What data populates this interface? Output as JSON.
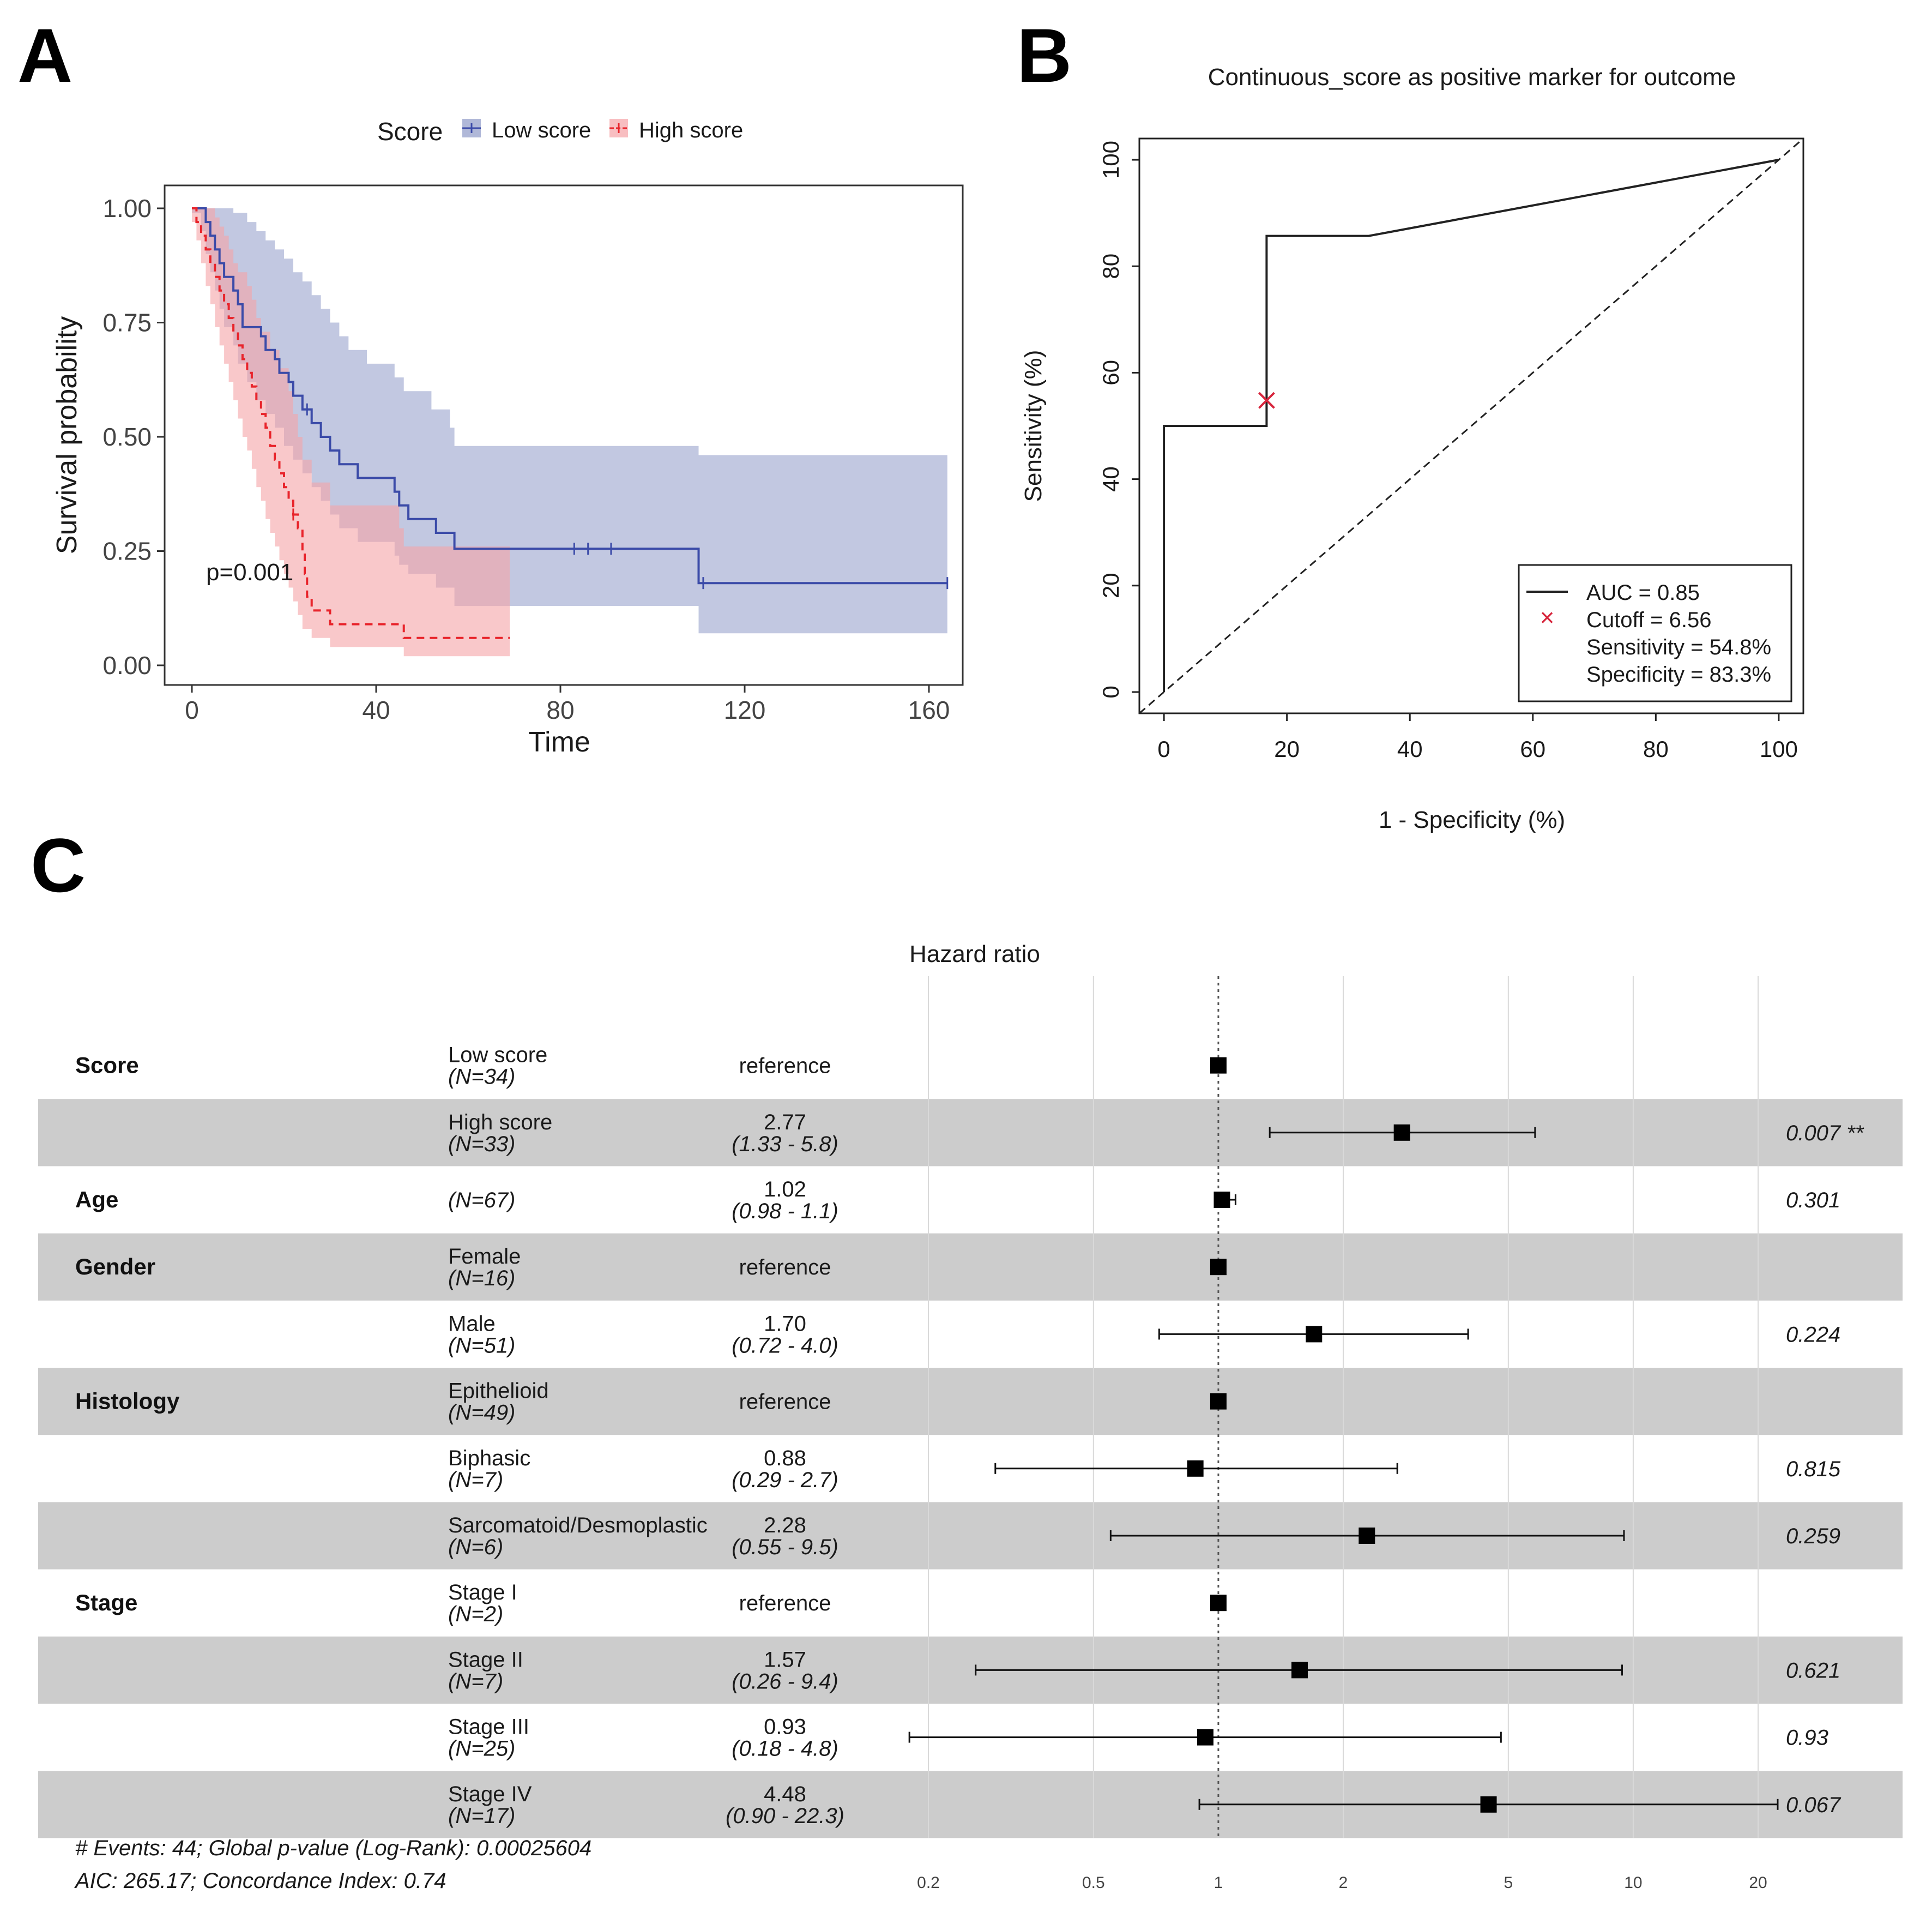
{
  "chart_data": [
    {
      "panel": "A",
      "type": "line",
      "legend": {
        "title": "Score",
        "placement": "top"
      },
      "xlabel": "Time",
      "ylabel": "Survival probability",
      "xlim": [
        0,
        168
      ],
      "ylim": [
        0,
        1
      ],
      "xticks": [
        0,
        40,
        80,
        120,
        160
      ],
      "yticks": [
        0,
        0.25,
        0.5,
        0.75,
        1
      ],
      "xtick_labels": [
        "0",
        "40",
        "80",
        "120",
        "160"
      ],
      "ytick_labels": [
        "0.00",
        "0.25",
        "0.50",
        "0.75",
        "1.00"
      ],
      "annotation": "p=0.001",
      "grid": false,
      "series": [
        {
          "name": "Low score",
          "color": "#3b4ba8",
          "ci_color": "#8f9ac8",
          "line_style": "solid",
          "steps": [
            [
              0,
              1.0
            ],
            [
              3,
              0.97
            ],
            [
              4,
              0.94
            ],
            [
              5,
              0.91
            ],
            [
              6,
              0.88
            ],
            [
              7,
              0.85
            ],
            [
              9,
              0.82
            ],
            [
              10,
              0.79
            ],
            [
              11,
              0.74
            ],
            [
              15,
              0.72
            ],
            [
              16,
              0.69
            ],
            [
              18,
              0.67
            ],
            [
              19,
              0.64
            ],
            [
              21,
              0.62
            ],
            [
              22,
              0.59
            ],
            [
              24,
              0.56
            ],
            [
              26,
              0.53
            ],
            [
              28,
              0.5
            ],
            [
              30,
              0.47
            ],
            [
              32,
              0.44
            ],
            [
              36,
              0.41
            ],
            [
              44,
              0.38
            ],
            [
              45,
              0.35
            ],
            [
              47,
              0.32
            ],
            [
              53,
              0.29
            ],
            [
              57,
              0.255
            ],
            [
              110,
              0.18
            ],
            [
              164,
              0.18
            ]
          ],
          "ci_upper": [
            [
              0,
              1.0
            ],
            [
              7,
              1.0
            ],
            [
              9,
              0.99
            ],
            [
              12,
              0.97
            ],
            [
              14,
              0.95
            ],
            [
              16,
              0.93
            ],
            [
              18,
              0.91
            ],
            [
              20,
              0.89
            ],
            [
              22,
              0.86
            ],
            [
              24,
              0.84
            ],
            [
              26,
              0.81
            ],
            [
              28,
              0.78
            ],
            [
              30,
              0.75
            ],
            [
              32,
              0.72
            ],
            [
              34,
              0.69
            ],
            [
              38,
              0.66
            ],
            [
              44,
              0.63
            ],
            [
              46,
              0.6
            ],
            [
              52,
              0.56
            ],
            [
              56,
              0.52
            ],
            [
              57,
              0.48
            ],
            [
              110,
              0.46
            ],
            [
              164,
              0.46
            ]
          ],
          "ci_lower": [
            [
              0,
              0.99
            ],
            [
              2,
              0.95
            ],
            [
              3,
              0.9
            ],
            [
              4,
              0.86
            ],
            [
              5,
              0.82
            ],
            [
              6,
              0.78
            ],
            [
              7,
              0.74
            ],
            [
              9,
              0.7
            ],
            [
              10,
              0.66
            ],
            [
              12,
              0.62
            ],
            [
              14,
              0.58
            ],
            [
              16,
              0.55
            ],
            [
              18,
              0.52
            ],
            [
              20,
              0.48
            ],
            [
              22,
              0.45
            ],
            [
              24,
              0.42
            ],
            [
              26,
              0.39
            ],
            [
              28,
              0.36
            ],
            [
              30,
              0.33
            ],
            [
              32,
              0.3
            ],
            [
              36,
              0.27
            ],
            [
              44,
              0.24
            ],
            [
              45,
              0.22
            ],
            [
              47,
              0.2
            ],
            [
              53,
              0.17
            ],
            [
              57,
              0.13
            ],
            [
              110,
              0.07
            ],
            [
              164,
              0.07
            ]
          ],
          "censor_times": [
            25,
            83,
            86,
            91,
            111,
            164
          ]
        },
        {
          "name": "High score",
          "color": "#e8242b",
          "ci_color": "#f5a3a6",
          "line_style": "dashed",
          "steps": [
            [
              0,
              1.0
            ],
            [
              1,
              0.97
            ],
            [
              2,
              0.94
            ],
            [
              3,
              0.91
            ],
            [
              4,
              0.88
            ],
            [
              5,
              0.85
            ],
            [
              6,
              0.82
            ],
            [
              7,
              0.79
            ],
            [
              8,
              0.76
            ],
            [
              9,
              0.73
            ],
            [
              10,
              0.7
            ],
            [
              11,
              0.67
            ],
            [
              12,
              0.64
            ],
            [
              13,
              0.61
            ],
            [
              14,
              0.58
            ],
            [
              15,
              0.55
            ],
            [
              16,
              0.52
            ],
            [
              17,
              0.48
            ],
            [
              18,
              0.45
            ],
            [
              19,
              0.42
            ],
            [
              20,
              0.39
            ],
            [
              21,
              0.36
            ],
            [
              22,
              0.33
            ],
            [
              23,
              0.3
            ],
            [
              24,
              0.25
            ],
            [
              24.5,
              0.2
            ],
            [
              25,
              0.15
            ],
            [
              26,
              0.12
            ],
            [
              30,
              0.09
            ],
            [
              46,
              0.06
            ],
            [
              69,
              0.06
            ]
          ],
          "ci_upper": [
            [
              0,
              1.0
            ],
            [
              4,
              1.0
            ],
            [
              5,
              0.98
            ],
            [
              6,
              0.96
            ],
            [
              7,
              0.94
            ],
            [
              8,
              0.91
            ],
            [
              9,
              0.88
            ],
            [
              10,
              0.86
            ],
            [
              12,
              0.83
            ],
            [
              13,
              0.8
            ],
            [
              14,
              0.76
            ],
            [
              15,
              0.73
            ],
            [
              17,
              0.69
            ],
            [
              19,
              0.65
            ],
            [
              21,
              0.6
            ],
            [
              22,
              0.55
            ],
            [
              23,
              0.5
            ],
            [
              24,
              0.45
            ],
            [
              26,
              0.4
            ],
            [
              30,
              0.35
            ],
            [
              45,
              0.3
            ],
            [
              46,
              0.26
            ],
            [
              69,
              0.26
            ]
          ],
          "ci_lower": [
            [
              0,
              0.97
            ],
            [
              1,
              0.93
            ],
            [
              2,
              0.88
            ],
            [
              3,
              0.83
            ],
            [
              4,
              0.79
            ],
            [
              5,
              0.74
            ],
            [
              6,
              0.7
            ],
            [
              7,
              0.66
            ],
            [
              8,
              0.62
            ],
            [
              9,
              0.58
            ],
            [
              10,
              0.54
            ],
            [
              11,
              0.5
            ],
            [
              12,
              0.47
            ],
            [
              13,
              0.43
            ],
            [
              14,
              0.39
            ],
            [
              15,
              0.36
            ],
            [
              16,
              0.32
            ],
            [
              17,
              0.29
            ],
            [
              18,
              0.26
            ],
            [
              19,
              0.23
            ],
            [
              20,
              0.2
            ],
            [
              21,
              0.17
            ],
            [
              22,
              0.14
            ],
            [
              23,
              0.11
            ],
            [
              24,
              0.08
            ],
            [
              26,
              0.06
            ],
            [
              30,
              0.04
            ],
            [
              46,
              0.02
            ],
            [
              69,
              0.02
            ]
          ],
          "censor_times": [
            22
          ]
        }
      ]
    },
    {
      "panel": "B",
      "type": "line",
      "title": "Continuous_score as positive marker for outcome",
      "xlabel": "1 - Specificity (%)",
      "ylabel": "Sensitivity (%)",
      "xlim": [
        -4,
        104
      ],
      "ylim": [
        -4,
        104
      ],
      "xticks": [
        0,
        20,
        40,
        60,
        80,
        100
      ],
      "yticks": [
        0,
        20,
        40,
        60,
        80,
        100
      ],
      "xtick_labels": [
        "0",
        "20",
        "40",
        "60",
        "80",
        "100"
      ],
      "ytick_labels": [
        "0",
        "20",
        "40",
        "60",
        "80",
        "100"
      ],
      "grid": false,
      "legend": {
        "placement": "bottom-right"
      },
      "legend_lines": [
        "AUC = 0.85",
        "Cutoff = 6.56",
        "Sensitivity = 54.8%",
        "Specificity = 83.3%"
      ],
      "series": [
        {
          "name": "AUC = 0.85",
          "color": "#222222",
          "line_style": "solid",
          "points": [
            [
              0,
              0
            ],
            [
              0,
              50
            ],
            [
              16.7,
              50
            ],
            [
              16.7,
              85.7
            ],
            [
              33.3,
              85.7
            ],
            [
              100,
              100
            ]
          ]
        },
        {
          "name": "diagonal",
          "color": "#222222",
          "line_style": "dashed",
          "points": [
            [
              -4,
              -4
            ],
            [
              104,
              104
            ]
          ]
        }
      ],
      "cutoff": {
        "x": 16.7,
        "y": 54.8,
        "color": "#d7263d"
      }
    },
    {
      "panel": "C",
      "type": "table",
      "title": "Hazard ratio",
      "x_scale": "log",
      "xticks": [
        0.2,
        0.5,
        1,
        2,
        5,
        10,
        20
      ],
      "xtick_labels": [
        "0.2",
        "0.5",
        "1",
        "2",
        "5",
        "10",
        "20"
      ],
      "reference_line": 1,
      "rows": [
        {
          "variable": "Score",
          "level": "Low score",
          "n": "(N=34)",
          "estimate": "reference",
          "ci": "",
          "p": "",
          "hr": 1,
          "lo": null,
          "hi": null,
          "shaded": false
        },
        {
          "variable": "",
          "level": "High score",
          "n": "(N=33)",
          "estimate": "2.77",
          "ci": "(1.33 - 5.8)",
          "p": "0.007 **",
          "hr": 2.77,
          "lo": 1.33,
          "hi": 5.8,
          "shaded": true
        },
        {
          "variable": "Age",
          "level": "",
          "n": "(N=67)",
          "estimate": "1.02",
          "ci": "(0.98 - 1.1)",
          "p": "0.301",
          "hr": 1.02,
          "lo": 0.98,
          "hi": 1.1,
          "shaded": false
        },
        {
          "variable": "Gender",
          "level": "Female",
          "n": "(N=16)",
          "estimate": "reference",
          "ci": "",
          "p": "",
          "hr": 1,
          "lo": null,
          "hi": null,
          "shaded": true
        },
        {
          "variable": "",
          "level": "Male",
          "n": "(N=51)",
          "estimate": "1.70",
          "ci": "(0.72 - 4.0)",
          "p": "0.224",
          "hr": 1.7,
          "lo": 0.72,
          "hi": 4.0,
          "shaded": false
        },
        {
          "variable": "Histology",
          "level": "Epithelioid",
          "n": "(N=49)",
          "estimate": "reference",
          "ci": "",
          "p": "",
          "hr": 1,
          "lo": null,
          "hi": null,
          "shaded": true
        },
        {
          "variable": "",
          "level": "Biphasic",
          "n": "(N=7)",
          "estimate": "0.88",
          "ci": "(0.29 - 2.7)",
          "p": "0.815",
          "hr": 0.88,
          "lo": 0.29,
          "hi": 2.7,
          "shaded": false
        },
        {
          "variable": "",
          "level": "Sarcomatoid/Desmoplastic",
          "n": "(N=6)",
          "estimate": "2.28",
          "ci": "(0.55 - 9.5)",
          "p": "0.259",
          "hr": 2.28,
          "lo": 0.55,
          "hi": 9.5,
          "shaded": true
        },
        {
          "variable": "Stage",
          "level": "Stage I",
          "n": "(N=2)",
          "estimate": "reference",
          "ci": "",
          "p": "",
          "hr": 1,
          "lo": null,
          "hi": null,
          "shaded": false
        },
        {
          "variable": "",
          "level": "Stage II",
          "n": "(N=7)",
          "estimate": "1.57",
          "ci": "(0.26 - 9.4)",
          "p": "0.621",
          "hr": 1.57,
          "lo": 0.26,
          "hi": 9.4,
          "shaded": true
        },
        {
          "variable": "",
          "level": "Stage III",
          "n": "(N=25)",
          "estimate": "0.93",
          "ci": "(0.18 - 4.8)",
          "p": "0.93",
          "hr": 0.93,
          "lo": 0.18,
          "hi": 4.8,
          "shaded": false
        },
        {
          "variable": "",
          "level": "Stage IV",
          "n": "(N=17)",
          "estimate": "4.48",
          "ci": "(0.90 - 22.3)",
          "p": "0.067",
          "hr": 4.48,
          "lo": 0.9,
          "hi": 22.3,
          "shaded": true
        }
      ],
      "footer": [
        "# Events: 44; Global p-value (Log-Rank): 0.00025604",
        "AIC: 265.17; Concordance Index: 0.74"
      ]
    }
  ],
  "panel_labels": {
    "a": "A",
    "b": "B",
    "c": "C"
  }
}
